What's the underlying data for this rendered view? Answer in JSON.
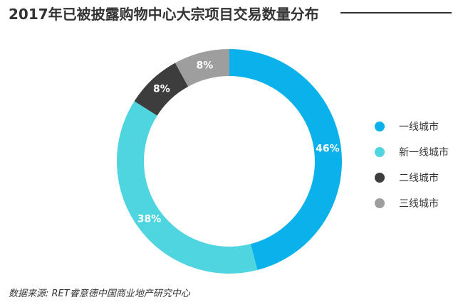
{
  "title": "2017年已被披露购物中心大宗项目交易数量分布",
  "source": "数据来源: RET睿意德中国商业地产研究中心",
  "chart_data": {
    "type": "pie",
    "variant": "donut",
    "title": "2017年已被披露购物中心大宗项目交易数量分布",
    "start": "12 o'clock, clockwise",
    "legend_position": "right",
    "slices": [
      {
        "name": "一线城市",
        "value": 46,
        "label": "46%",
        "color": "#0ab1ea"
      },
      {
        "name": "新一线城市",
        "value": 38,
        "label": "38%",
        "color": "#4fd5e0"
      },
      {
        "name": "二线城市",
        "value": 8,
        "label": "8%",
        "color": "#3d3d3d"
      },
      {
        "name": "三线城市",
        "value": 8,
        "label": "8%",
        "color": "#9e9e9e"
      }
    ]
  }
}
